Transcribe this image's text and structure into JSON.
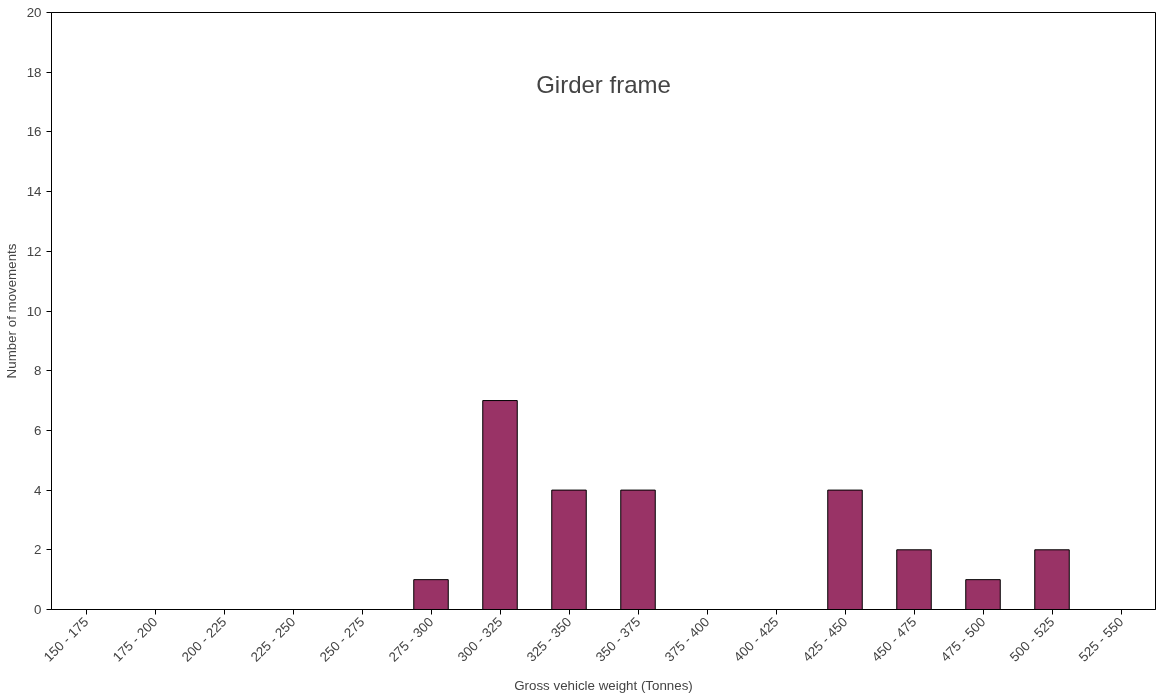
{
  "chart_data": {
    "type": "bar",
    "title": "Girder frame",
    "xlabel": "Gross vehicle weight (Tonnes)",
    "ylabel": "Number of movements",
    "categories": [
      "150 - 175",
      "175 - 200",
      "200 - 225",
      "225 - 250",
      "250 - 275",
      "275 - 300",
      "300 - 325",
      "325 - 350",
      "350 - 375",
      "375 - 400",
      "400 - 425",
      "425 - 450",
      "450 - 475",
      "475 - 500",
      "500 - 525",
      "525 - 550"
    ],
    "values": [
      0,
      0,
      0,
      0,
      0,
      1,
      7,
      4,
      4,
      0,
      0,
      4,
      2,
      1,
      2,
      0
    ],
    "color": "#993366",
    "ylim": [
      0,
      20
    ],
    "yticks": [
      0,
      2,
      4,
      6,
      8,
      10,
      12,
      14,
      16,
      18,
      20
    ],
    "grid": false
  }
}
